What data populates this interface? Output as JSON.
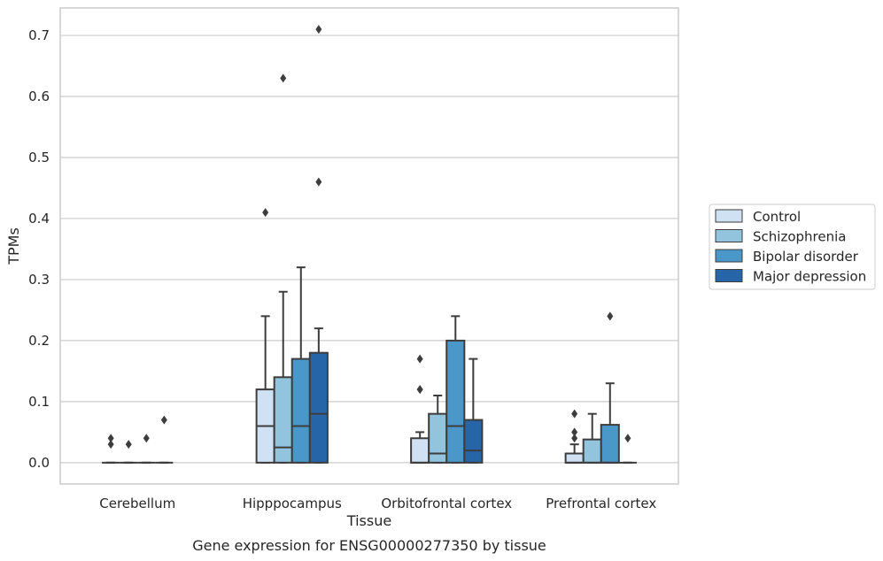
{
  "chart_data": {
    "type": "box",
    "title": "",
    "caption": "Gene expression for ENSG00000277350 by tissue",
    "xlabel": "Tissue",
    "ylabel": "TPMs",
    "ylim": [
      -0.035,
      0.745
    ],
    "yticks": [
      "0.0",
      "0.1",
      "0.2",
      "0.3",
      "0.4",
      "0.5",
      "0.6",
      "0.7"
    ],
    "grid": "horizontal",
    "legend_position": "right",
    "categories": [
      "Cerebellum",
      "Hipppocampus",
      "Orbitofrontal cortex",
      "Prefrontal cortex"
    ],
    "series": [
      {
        "name": "Control",
        "color": "#cfe1f2",
        "boxes": [
          {
            "whisker_low": 0,
            "q1": 0,
            "median": 0,
            "q3": 0,
            "whisker_high": 0,
            "outliers": [
              0.03,
              0.04
            ]
          },
          {
            "whisker_low": 0,
            "q1": 0,
            "median": 0.06,
            "q3": 0.12,
            "whisker_high": 0.24,
            "outliers": [
              0.41
            ]
          },
          {
            "whisker_low": 0,
            "q1": 0,
            "median": 0,
            "q3": 0.04,
            "whisker_high": 0.05,
            "outliers": [
              0.12,
              0.12,
              0.17
            ]
          },
          {
            "whisker_low": 0,
            "q1": 0,
            "median": 0,
            "q3": 0.015,
            "whisker_high": 0.03,
            "outliers": [
              0.04,
              0.05,
              0.08
            ]
          }
        ]
      },
      {
        "name": "Schizophrenia",
        "color": "#93c4de",
        "boxes": [
          {
            "whisker_low": 0,
            "q1": 0,
            "median": 0,
            "q3": 0,
            "whisker_high": 0,
            "outliers": [
              0.03
            ]
          },
          {
            "whisker_low": 0,
            "q1": 0,
            "median": 0.025,
            "q3": 0.14,
            "whisker_high": 0.28,
            "outliers": [
              0.63
            ]
          },
          {
            "whisker_low": 0,
            "q1": 0,
            "median": 0.015,
            "q3": 0.08,
            "whisker_high": 0.11,
            "outliers": []
          },
          {
            "whisker_low": 0,
            "q1": 0,
            "median": 0,
            "q3": 0.038,
            "whisker_high": 0.08,
            "outliers": []
          }
        ]
      },
      {
        "name": "Bipolar disorder",
        "color": "#4a98c9",
        "boxes": [
          {
            "whisker_low": 0,
            "q1": 0,
            "median": 0,
            "q3": 0,
            "whisker_high": 0,
            "outliers": [
              0.04
            ]
          },
          {
            "whisker_low": 0,
            "q1": 0,
            "median": 0.06,
            "q3": 0.17,
            "whisker_high": 0.32,
            "outliers": []
          },
          {
            "whisker_low": 0,
            "q1": 0,
            "median": 0.06,
            "q3": 0.2,
            "whisker_high": 0.24,
            "outliers": []
          },
          {
            "whisker_low": 0,
            "q1": 0,
            "median": 0,
            "q3": 0.062,
            "whisker_high": 0.13,
            "outliers": [
              0.24
            ]
          }
        ]
      },
      {
        "name": "Major depression",
        "color": "#2565a8",
        "boxes": [
          {
            "whisker_low": 0,
            "q1": 0,
            "median": 0,
            "q3": 0,
            "whisker_high": 0,
            "outliers": [
              0.07
            ]
          },
          {
            "whisker_low": 0,
            "q1": 0,
            "median": 0.08,
            "q3": 0.18,
            "whisker_high": 0.22,
            "outliers": [
              0.46,
              0.71
            ]
          },
          {
            "whisker_low": 0,
            "q1": 0,
            "median": 0.02,
            "q3": 0.07,
            "whisker_high": 0.17,
            "outliers": []
          },
          {
            "whisker_low": 0,
            "q1": 0,
            "median": 0,
            "q3": 0,
            "whisker_high": 0,
            "outliers": [
              0.04
            ]
          }
        ]
      }
    ]
  }
}
